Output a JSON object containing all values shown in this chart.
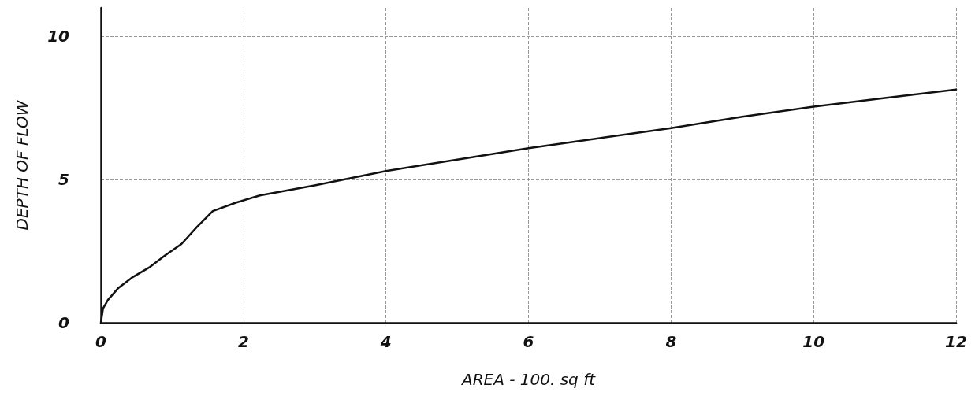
{
  "chart_data": {
    "type": "line",
    "xlabel": "AREA - 100. sq ft",
    "ylabel": "DEPTH OF FLOW",
    "x": [
      0,
      0.03,
      0.1,
      0.24,
      0.45,
      0.69,
      0.9,
      1.13,
      1.35,
      1.57,
      1.9,
      2.23,
      3,
      4,
      5,
      6,
      7,
      8,
      9,
      10,
      11,
      12
    ],
    "series": [
      {
        "color": "#111111",
        "values": [
          0,
          0.5,
          0.8,
          1.2,
          1.6,
          1.95,
          2.35,
          2.75,
          3.35,
          3.9,
          4.2,
          4.45,
          4.8,
          5.3,
          5.7,
          6.1,
          6.45,
          6.8,
          7.2,
          7.55,
          7.85,
          8.15
        ]
      }
    ],
    "xlim": [
      0,
      12
    ],
    "xticks": [
      0,
      2,
      4,
      6,
      8,
      10,
      12
    ],
    "ylim": [
      0,
      11
    ],
    "yticks": [
      0,
      5,
      10
    ],
    "grid": true,
    "marker": "none",
    "line_style": "solid"
  }
}
